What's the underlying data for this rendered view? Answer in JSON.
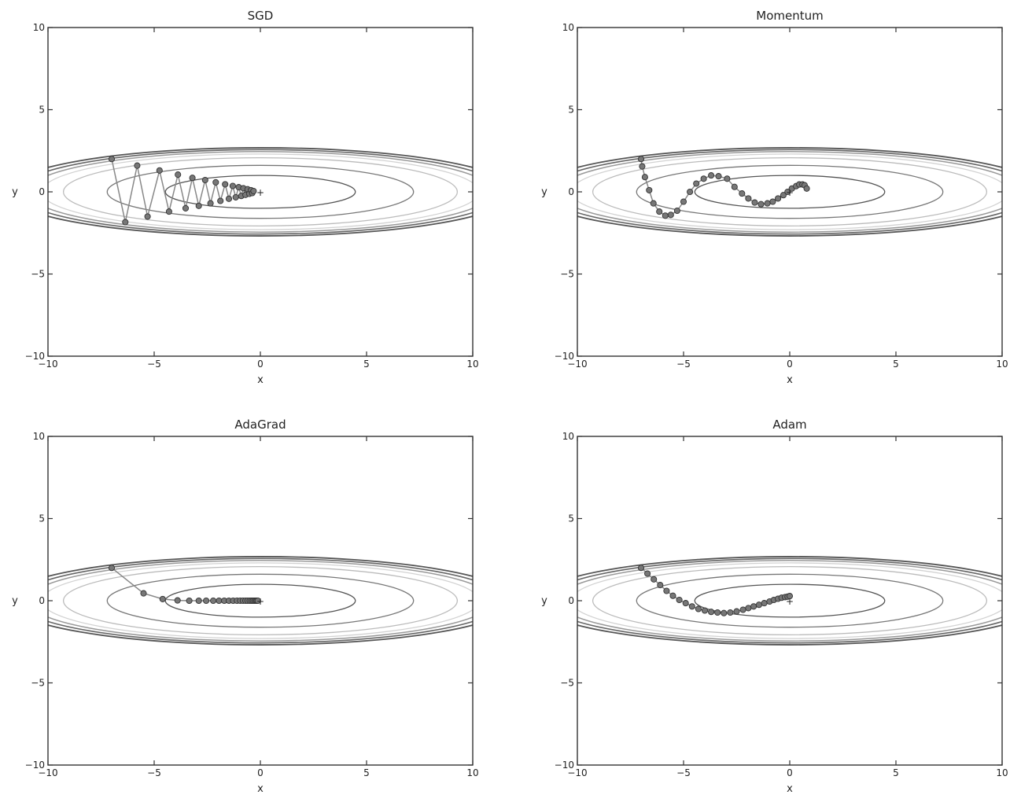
{
  "chart_data": [
    {
      "type": "line",
      "title": "SGD",
      "xlabel": "x",
      "ylabel": "y",
      "xlim": [
        -10,
        10
      ],
      "ylim": [
        -10,
        10
      ],
      "xticks": [
        "−10",
        "−5",
        "0",
        "5",
        "10"
      ],
      "yticks": [
        "−10",
        "−5",
        "0",
        "5",
        "10"
      ],
      "minimum_marker": "+",
      "grid": false,
      "path": {
        "x": [
          -7.0,
          -6.36,
          -5.8,
          -5.31,
          -4.75,
          -4.3,
          -3.88,
          -3.52,
          -3.2,
          -2.9,
          -2.6,
          -2.35,
          -2.1,
          -1.88,
          -1.66,
          -1.48,
          -1.3,
          -1.16,
          -1.02,
          -0.9,
          -0.8,
          -0.7,
          -0.6,
          -0.52,
          -0.44,
          -0.38,
          -0.32
        ],
        "y": [
          2.0,
          -1.84,
          1.6,
          -1.5,
          1.3,
          -1.2,
          1.05,
          -1.0,
          0.85,
          -0.85,
          0.72,
          -0.7,
          0.58,
          -0.55,
          0.46,
          -0.42,
          0.36,
          -0.33,
          0.28,
          -0.25,
          0.22,
          -0.18,
          0.16,
          -0.12,
          0.1,
          -0.07,
          0.05
        ]
      }
    },
    {
      "type": "line",
      "title": "Momentum",
      "xlabel": "x",
      "ylabel": "y",
      "xlim": [
        -10,
        10
      ],
      "ylim": [
        -10,
        10
      ],
      "xticks": [
        "−10",
        "−5",
        "0",
        "5",
        "10"
      ],
      "yticks": [
        "−10",
        "−5",
        "0",
        "5",
        "10"
      ],
      "minimum_marker": "+",
      "grid": false,
      "path": {
        "x": [
          -7.0,
          -6.95,
          -6.82,
          -6.62,
          -6.42,
          -6.14,
          -5.86,
          -5.6,
          -5.3,
          -5.0,
          -4.7,
          -4.4,
          -4.05,
          -3.7,
          -3.35,
          -2.95,
          -2.6,
          -2.25,
          -1.95,
          -1.65,
          -1.35,
          -1.05,
          -0.8,
          -0.55,
          -0.3,
          -0.1,
          0.1,
          0.3,
          0.45,
          0.6,
          0.7,
          0.8
        ],
        "y": [
          2.0,
          1.55,
          0.9,
          0.1,
          -0.7,
          -1.2,
          -1.45,
          -1.4,
          -1.15,
          -0.6,
          0.0,
          0.5,
          0.8,
          1.0,
          0.95,
          0.8,
          0.3,
          -0.1,
          -0.4,
          -0.65,
          -0.75,
          -0.7,
          -0.6,
          -0.4,
          -0.2,
          0.0,
          0.2,
          0.35,
          0.45,
          0.45,
          0.4,
          0.2
        ]
      }
    },
    {
      "type": "line",
      "title": "AdaGrad",
      "xlabel": "x",
      "ylabel": "y",
      "xlim": [
        -10,
        10
      ],
      "ylim": [
        -10,
        10
      ],
      "xticks": [
        "−10",
        "−5",
        "0",
        "5",
        "10"
      ],
      "yticks": [
        "−10",
        "−5",
        "0",
        "5",
        "10"
      ],
      "minimum_marker": "+",
      "grid": false,
      "path": {
        "x": [
          -7.0,
          -5.5,
          -4.6,
          -3.9,
          -3.35,
          -2.9,
          -2.55,
          -2.22,
          -1.95,
          -1.7,
          -1.48,
          -1.28,
          -1.1,
          -0.95,
          -0.82,
          -0.7,
          -0.6,
          -0.5,
          -0.42,
          -0.35,
          -0.28,
          -0.22,
          -0.17,
          -0.12
        ],
        "y": [
          2.0,
          0.45,
          0.1,
          0.02,
          0.0,
          0.0,
          0.0,
          0.0,
          0.0,
          0.0,
          0.0,
          0.0,
          0.0,
          0.0,
          0.0,
          0.0,
          0.0,
          0.0,
          0.0,
          0.0,
          0.0,
          0.0,
          0.0,
          0.0
        ]
      }
    },
    {
      "type": "line",
      "title": "Adam",
      "xlabel": "x",
      "ylabel": "y",
      "xlim": [
        -10,
        10
      ],
      "ylim": [
        -10,
        10
      ],
      "xticks": [
        "−10",
        "−5",
        "0",
        "5",
        "10"
      ],
      "yticks": [
        "−10",
        "−5",
        "0",
        "5",
        "10"
      ],
      "minimum_marker": "+",
      "grid": false,
      "path": {
        "x": [
          -7.0,
          -6.7,
          -6.4,
          -6.1,
          -5.8,
          -5.5,
          -5.2,
          -4.9,
          -4.6,
          -4.3,
          -4.0,
          -3.7,
          -3.4,
          -3.1,
          -2.8,
          -2.5,
          -2.2,
          -1.95,
          -1.7,
          -1.45,
          -1.2,
          -0.95,
          -0.75,
          -0.55,
          -0.38,
          -0.22,
          -0.1,
          0.0
        ],
        "y": [
          2.0,
          1.65,
          1.3,
          0.95,
          0.6,
          0.3,
          0.05,
          -0.15,
          -0.35,
          -0.5,
          -0.6,
          -0.68,
          -0.72,
          -0.75,
          -0.72,
          -0.65,
          -0.55,
          -0.45,
          -0.35,
          -0.25,
          -0.15,
          -0.05,
          0.05,
          0.12,
          0.18,
          0.22,
          0.25,
          0.28
        ]
      }
    }
  ]
}
